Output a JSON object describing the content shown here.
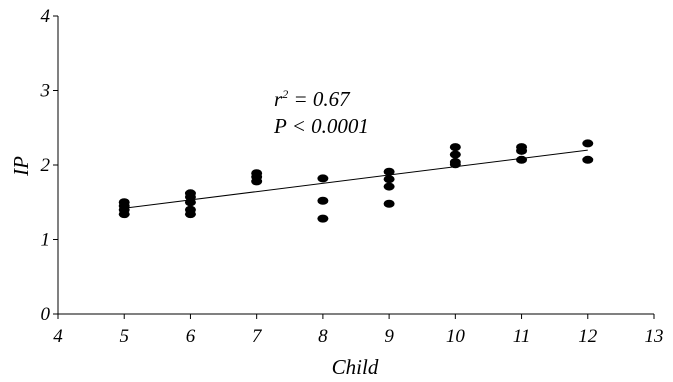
{
  "chart_data": {
    "type": "scatter",
    "xlabel": "Child",
    "ylabel": "IP",
    "xlim": [
      4,
      13
    ],
    "ylim": [
      0,
      4
    ],
    "xticks": [
      4,
      5,
      6,
      7,
      8,
      9,
      10,
      11,
      12,
      13
    ],
    "yticks": [
      0,
      1,
      2,
      3,
      4
    ],
    "grid": false,
    "points": [
      {
        "x": 5,
        "y": 1.5
      },
      {
        "x": 5,
        "y": 1.45
      },
      {
        "x": 5,
        "y": 1.4
      },
      {
        "x": 5,
        "y": 1.34
      },
      {
        "x": 6,
        "y": 1.62
      },
      {
        "x": 6,
        "y": 1.57
      },
      {
        "x": 6,
        "y": 1.5
      },
      {
        "x": 6,
        "y": 1.4
      },
      {
        "x": 6,
        "y": 1.34
      },
      {
        "x": 7,
        "y": 1.89
      },
      {
        "x": 7,
        "y": 1.84
      },
      {
        "x": 7,
        "y": 1.78
      },
      {
        "x": 8,
        "y": 1.82
      },
      {
        "x": 8,
        "y": 1.52
      },
      {
        "x": 8,
        "y": 1.28
      },
      {
        "x": 9,
        "y": 1.91
      },
      {
        "x": 9,
        "y": 1.81
      },
      {
        "x": 9,
        "y": 1.71
      },
      {
        "x": 9,
        "y": 1.48
      },
      {
        "x": 10,
        "y": 2.24
      },
      {
        "x": 10,
        "y": 2.14
      },
      {
        "x": 10,
        "y": 2.04
      },
      {
        "x": 10,
        "y": 2.01
      },
      {
        "x": 11,
        "y": 2.24
      },
      {
        "x": 11,
        "y": 2.19
      },
      {
        "x": 11,
        "y": 2.07
      },
      {
        "x": 12,
        "y": 2.29
      },
      {
        "x": 12,
        "y": 2.07
      }
    ],
    "regression_line": {
      "x": [
        5,
        12
      ],
      "y": [
        1.42,
        2.2
      ]
    },
    "annotations": {
      "r2_prefix": "r",
      "r2_superscript": "2",
      "r2_suffix": " = 0.67",
      "p_value": "P < 0.0001"
    }
  }
}
